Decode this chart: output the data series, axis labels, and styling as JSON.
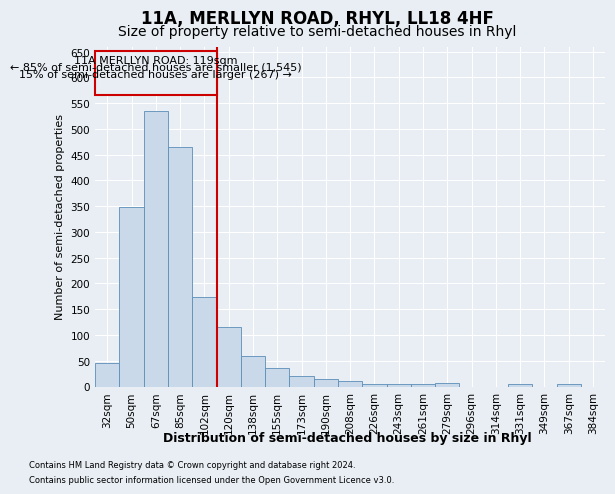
{
  "title": "11A, MERLLYN ROAD, RHYL, LL18 4HF",
  "subtitle": "Size of property relative to semi-detached houses in Rhyl",
  "xlabel": "Distribution of semi-detached houses by size in Rhyl",
  "ylabel": "Number of semi-detached properties",
  "footnote1": "Contains HM Land Registry data © Crown copyright and database right 2024.",
  "footnote2": "Contains public sector information licensed under the Open Government Licence v3.0.",
  "categories": [
    "32sqm",
    "50sqm",
    "67sqm",
    "85sqm",
    "102sqm",
    "120sqm",
    "138sqm",
    "155sqm",
    "173sqm",
    "190sqm",
    "208sqm",
    "226sqm",
    "243sqm",
    "261sqm",
    "279sqm",
    "296sqm",
    "314sqm",
    "331sqm",
    "349sqm",
    "367sqm",
    "384sqm"
  ],
  "values": [
    45,
    348,
    535,
    465,
    174,
    115,
    60,
    35,
    20,
    15,
    10,
    5,
    5,
    5,
    7,
    0,
    0,
    5,
    0,
    5,
    0
  ],
  "bar_color": "#c9d9ea",
  "bar_edge_color": "#5b8db8",
  "highlight_color": "#cc0000",
  "annotation_text1": "11A MERLLYN ROAD: 119sqm",
  "annotation_text2": "← 85% of semi-detached houses are smaller (1,545)",
  "annotation_text3": "15% of semi-detached houses are larger (267) →",
  "annotation_box_color": "#cc0000",
  "ylim": [
    0,
    660
  ],
  "yticks": [
    0,
    50,
    100,
    150,
    200,
    250,
    300,
    350,
    400,
    450,
    500,
    550,
    600,
    650
  ],
  "background_color": "#e8eef4",
  "grid_color": "#ffffff",
  "title_fontsize": 12,
  "subtitle_fontsize": 10,
  "axis_label_fontsize": 8,
  "tick_fontsize": 7.5,
  "annotation_fontsize": 8,
  "footnote_fontsize": 6
}
